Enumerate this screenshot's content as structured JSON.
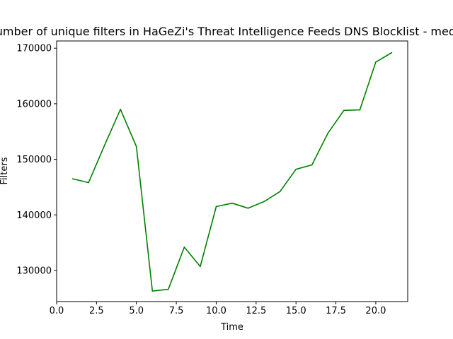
{
  "chart_data": {
    "type": "line",
    "title": "Number of unique filters in HaGeZi's Threat Intelligence Feeds DNS Blocklist - medium",
    "xlabel": "Time",
    "ylabel": "Filters",
    "xlim": [
      0.0,
      22.0
    ],
    "ylim": [
      124400,
      171300
    ],
    "xticks": [
      0.0,
      2.5,
      5.0,
      7.5,
      10.0,
      12.5,
      15.0,
      17.5,
      20.0
    ],
    "xtick_labels": [
      "0.0",
      "2.5",
      "5.0",
      "7.5",
      "10.0",
      "12.5",
      "15.0",
      "17.5",
      "20.0"
    ],
    "yticks": [
      130000,
      140000,
      150000,
      160000,
      170000
    ],
    "ytick_labels": [
      "130000",
      "140000",
      "150000",
      "160000",
      "170000"
    ],
    "grid": false,
    "legend": "none",
    "series": [
      {
        "color": "#008000",
        "x": [
          1,
          2,
          3,
          4,
          5,
          6,
          7,
          8,
          9,
          10,
          11,
          12,
          13,
          14,
          15,
          16,
          17,
          18,
          19,
          20,
          21
        ],
        "y": [
          146500,
          145800,
          152500,
          159000,
          152300,
          126300,
          126600,
          134200,
          130700,
          141500,
          142100,
          141200,
          142400,
          144200,
          148200,
          149000,
          154700,
          158800,
          158900,
          167500,
          169200
        ]
      }
    ]
  }
}
